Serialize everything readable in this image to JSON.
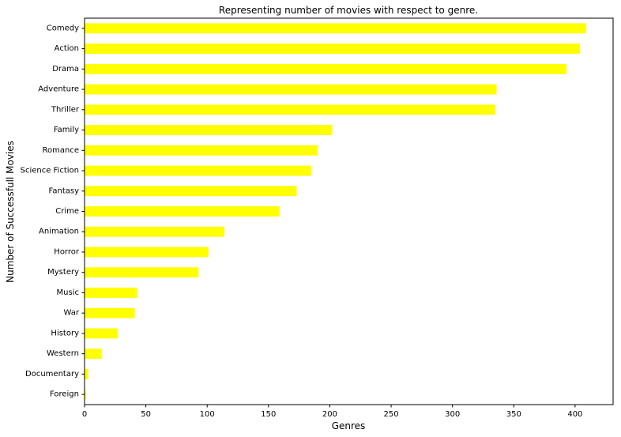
{
  "chart_data": {
    "type": "bar",
    "orientation": "horizontal",
    "title": "Representing number of movies with respect to genre.",
    "xlabel": "Genres",
    "ylabel": "Number of Successfull Movies",
    "xlim": [
      0,
      431
    ],
    "xticks": [
      "0",
      "50",
      "100",
      "150",
      "200",
      "250",
      "300",
      "350",
      "400"
    ],
    "bar_color": "#ffff00",
    "grid": false,
    "categories": [
      "Comedy",
      "Action",
      "Drama",
      "Adventure",
      "Thriller",
      "Family",
      "Romance",
      "Science Fiction",
      "Fantasy",
      "Crime",
      "Animation",
      "Horror",
      "Mystery",
      "Music",
      "War",
      "History",
      "Western",
      "Documentary",
      "Foreign"
    ],
    "values": [
      409,
      404,
      393,
      336,
      335,
      202,
      190,
      185,
      173,
      159,
      114,
      101,
      93,
      43,
      41,
      27,
      14,
      3,
      1
    ]
  }
}
